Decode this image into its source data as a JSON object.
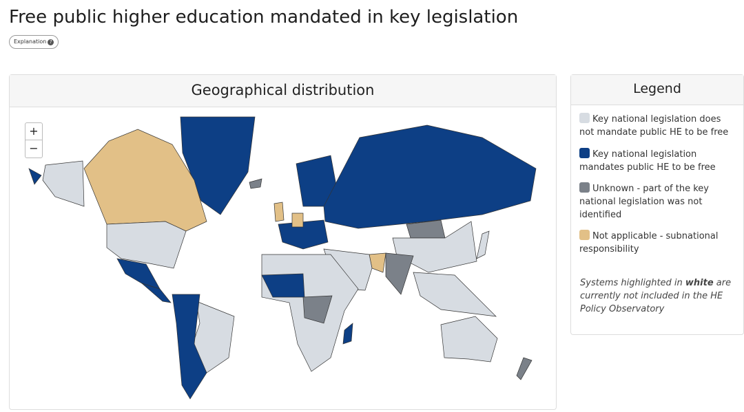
{
  "header": {
    "title": "Free public higher education mandated in key legislation",
    "explanation": "Explanation"
  },
  "map_panel": {
    "title": "Geographical distribution"
  },
  "legend": {
    "title": "Legend",
    "items": [
      {
        "label": "Key national legislation does not mandate public HE to be free",
        "color": "#d7dce2"
      },
      {
        "label": "Key national legislation mandates public HE to be free",
        "color": "#0d3f85"
      },
      {
        "label": "Unknown - part of the key national legislation was not identified",
        "color": "#7b8189"
      },
      {
        "label": "Not applicable - subnational responsibility",
        "color": "#e2c087"
      }
    ],
    "note": {
      "before": "Systems highlighted in ",
      "emphasis": "white",
      "after": " are currently not included in the HE Policy Observatory"
    }
  }
}
